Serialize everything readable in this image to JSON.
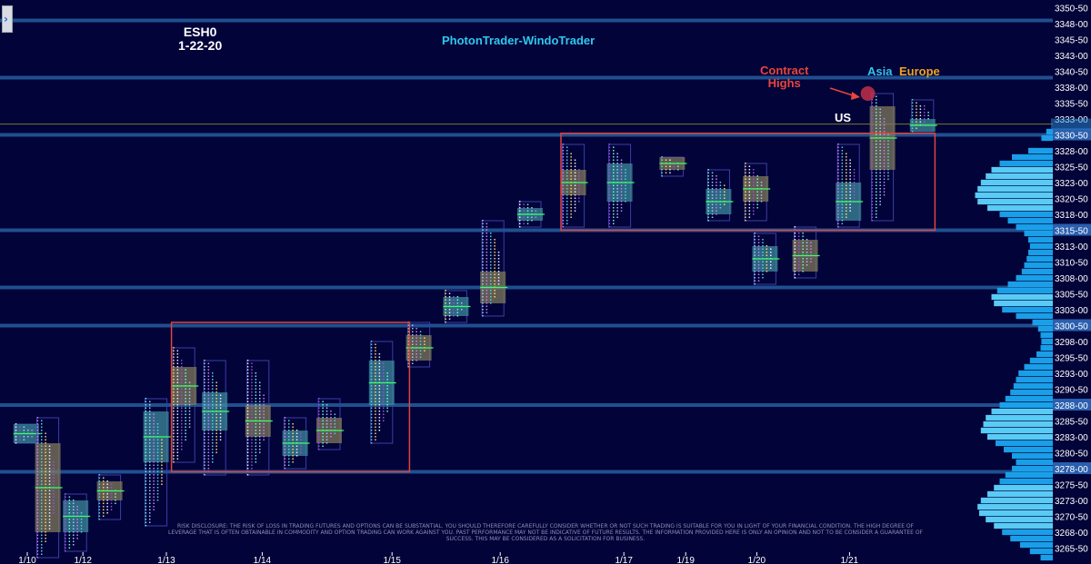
{
  "header": {
    "symbol": "ESH0",
    "date": "1-22-20",
    "title": "PhotonTrader-WindoTrader"
  },
  "annotations": {
    "contract_highs": "Contract\nHighs",
    "asia": "Asia",
    "europe": "Europe",
    "us": "US"
  },
  "disclaimer": "RISK DISCLOSURE: THE RISK OF LOSS IN TRADING FUTURES AND OPTIONS CAN BE SUBSTANTIAL. YOU SHOULD THEREFORE CAREFULLY CONSIDER WHETHER OR NOT SUCH TRADING IS SUITABLE FOR YOU IN LIGHT OF YOUR FINANCIAL CONDITION. THE HIGH DEGREE OF LEVERAGE THAT IS OFTEN OBTAINABLE IN COMMODITY AND OPTION TRADING CAN WORK AGAINST YOU. PAST PERFORMANCE MAY NOT BE INDICATIVE OF FUTURE RESULTS. THE INFORMATION PROVIDED HERE IS ONLY AN OPINION AND NOT TO BE CONSIDER A GUARANTEE OF SUCCESS. THIS MAY BE CONSIDERED AS A SOLICITATION FOR BUSINESS.",
  "colors": {
    "background": "#020338",
    "level_line": "#1f4f8f",
    "box": "#e0443f",
    "axis_text": "#ffffff",
    "axis_highlight": "#2a5fae",
    "profile": "#1aa7f0",
    "annotation_red": "#e8453c",
    "annotation_cyan": "#34c3ef",
    "annotation_orange": "#f0a321"
  },
  "chart_data": {
    "type": "market-profile",
    "title": "PhotonTrader-WindoTrader",
    "y_axis": {
      "min": 3263,
      "max": 3351,
      "position": "right",
      "ticks": [
        "3350-50",
        "3348-00",
        "3345-50",
        "3343-00",
        "3340-50",
        "3338-00",
        "3335-50",
        "3333-00",
        "3330-50",
        "3328-00",
        "3325-50",
        "3323-00",
        "3320-50",
        "3318-00",
        "3315-50",
        "3313-00",
        "3310-50",
        "3308-00",
        "3305-50",
        "3303-00",
        "3300-50",
        "3298-00",
        "3295-50",
        "3293-00",
        "3290-50",
        "3288-00",
        "3285-50",
        "3283-00",
        "3280-50",
        "3278-00",
        "3275-50",
        "3273-00",
        "3270-50",
        "3268-00",
        "3265-50"
      ],
      "highlighted_ticks": [
        "3330-50",
        "3315-50",
        "3300-50",
        "3288-00",
        "3278-00"
      ]
    },
    "x_axis": {
      "labels": [
        {
          "text": "1/10",
          "x": 0
        },
        {
          "text": "1/12",
          "x": 1.8
        },
        {
          "text": "1/13",
          "x": 4.5
        },
        {
          "text": "1/14",
          "x": 7.6
        },
        {
          "text": "1/15",
          "x": 11.8
        },
        {
          "text": "1/16",
          "x": 15.3
        },
        {
          "text": "1/17",
          "x": 19.3
        },
        {
          "text": "1/19",
          "x": 21.3
        },
        {
          "text": "1/20",
          "x": 23.6
        },
        {
          "text": "1/21",
          "x": 26.6
        }
      ]
    },
    "horizontal_levels": [
      3348.5,
      3339.5,
      3330.5,
      3315.5,
      3306.5,
      3300.5,
      3288,
      3277.5
    ],
    "boxes": [
      {
        "x0": 4.9,
        "x1": 12.6,
        "y_low": 3277.5,
        "y_high": 3301
      },
      {
        "x0": 17.5,
        "x1": 29.6,
        "y_low": 3315.5,
        "y_high": 3330.75
      }
    ],
    "profiles": [
      {
        "x": 0.2,
        "low": 3282,
        "high": 3285,
        "val": 3282,
        "vah": 3285
      },
      {
        "x": 0.9,
        "low": 3264,
        "high": 3286,
        "val": 3268,
        "vah": 3282
      },
      {
        "x": 1.8,
        "low": 3265,
        "high": 3274,
        "val": 3268,
        "vah": 3273
      },
      {
        "x": 2.9,
        "low": 3270,
        "high": 3277,
        "val": 3273,
        "vah": 3276
      },
      {
        "x": 4.4,
        "low": 3269,
        "high": 3289,
        "val": 3279,
        "vah": 3287
      },
      {
        "x": 5.3,
        "low": 3279,
        "high": 3297,
        "val": 3288,
        "vah": 3294
      },
      {
        "x": 6.3,
        "low": 3277,
        "high": 3295,
        "val": 3284,
        "vah": 3290
      },
      {
        "x": 7.7,
        "low": 3277,
        "high": 3295,
        "val": 3283,
        "vah": 3288
      },
      {
        "x": 8.9,
        "low": 3278,
        "high": 3286,
        "val": 3280,
        "vah": 3284
      },
      {
        "x": 10.0,
        "low": 3281,
        "high": 3289,
        "val": 3282,
        "vah": 3286
      },
      {
        "x": 11.7,
        "low": 3282,
        "high": 3298,
        "val": 3288,
        "vah": 3295
      },
      {
        "x": 12.9,
        "low": 3294,
        "high": 3301,
        "val": 3295,
        "vah": 3299
      },
      {
        "x": 14.1,
        "low": 3301,
        "high": 3306,
        "val": 3302,
        "vah": 3305
      },
      {
        "x": 15.3,
        "low": 3302,
        "high": 3317,
        "val": 3304,
        "vah": 3309
      },
      {
        "x": 16.5,
        "low": 3316,
        "high": 3320,
        "val": 3317,
        "vah": 3319
      },
      {
        "x": 17.9,
        "low": 3316,
        "high": 3329,
        "val": 3321,
        "vah": 3325
      },
      {
        "x": 19.4,
        "low": 3316,
        "high": 3329,
        "val": 3320,
        "vah": 3326
      },
      {
        "x": 21.1,
        "low": 3324,
        "high": 3327,
        "val": 3325,
        "vah": 3327
      },
      {
        "x": 22.6,
        "low": 3317,
        "high": 3325,
        "val": 3318,
        "vah": 3322
      },
      {
        "x": 23.8,
        "low": 3317,
        "high": 3326,
        "val": 3320,
        "vah": 3324
      },
      {
        "x": 24.1,
        "low": 3307,
        "high": 3315,
        "val": 3309,
        "vah": 3313
      },
      {
        "x": 25.4,
        "low": 3308,
        "high": 3316,
        "val": 3309,
        "vah": 3314
      },
      {
        "x": 26.8,
        "low": 3316,
        "high": 3329,
        "val": 3317,
        "vah": 3323
      },
      {
        "x": 27.9,
        "low": 3317,
        "high": 3337,
        "val": 3325,
        "vah": 3335
      },
      {
        "x": 29.2,
        "low": 3331,
        "high": 3336,
        "val": 3331,
        "vah": 3333
      }
    ],
    "volume_profile": [
      {
        "price": 3331,
        "w": 8
      },
      {
        "price": 3330,
        "w": 14
      },
      {
        "price": 3328,
        "w": 30
      },
      {
        "price": 3327,
        "w": 50
      },
      {
        "price": 3326,
        "w": 65
      },
      {
        "price": 3325,
        "w": 75
      },
      {
        "price": 3324,
        "w": 82
      },
      {
        "price": 3323,
        "w": 88
      },
      {
        "price": 3322,
        "w": 92
      },
      {
        "price": 3321,
        "w": 95
      },
      {
        "price": 3320,
        "w": 92
      },
      {
        "price": 3319,
        "w": 80
      },
      {
        "price": 3318,
        "w": 65
      },
      {
        "price": 3317,
        "w": 55
      },
      {
        "price": 3316,
        "w": 45
      },
      {
        "price": 3315,
        "w": 35
      },
      {
        "price": 3314,
        "w": 30
      },
      {
        "price": 3313,
        "w": 28
      },
      {
        "price": 3312,
        "w": 30
      },
      {
        "price": 3311,
        "w": 32
      },
      {
        "price": 3310,
        "w": 35
      },
      {
        "price": 3309,
        "w": 38
      },
      {
        "price": 3308,
        "w": 45
      },
      {
        "price": 3307,
        "w": 55
      },
      {
        "price": 3306,
        "w": 68
      },
      {
        "price": 3305,
        "w": 75
      },
      {
        "price": 3304,
        "w": 72
      },
      {
        "price": 3303,
        "w": 62
      },
      {
        "price": 3302,
        "w": 45
      },
      {
        "price": 3301,
        "w": 25
      },
      {
        "price": 3300,
        "w": 18
      },
      {
        "price": 3299,
        "w": 15
      },
      {
        "price": 3298,
        "w": 14
      },
      {
        "price": 3297,
        "w": 15
      },
      {
        "price": 3296,
        "w": 20
      },
      {
        "price": 3295,
        "w": 28
      },
      {
        "price": 3294,
        "w": 35
      },
      {
        "price": 3293,
        "w": 42
      },
      {
        "price": 3292,
        "w": 45
      },
      {
        "price": 3291,
        "w": 48
      },
      {
        "price": 3290,
        "w": 52
      },
      {
        "price": 3289,
        "w": 58
      },
      {
        "price": 3288,
        "w": 65
      },
      {
        "price": 3287,
        "w": 75
      },
      {
        "price": 3286,
        "w": 82
      },
      {
        "price": 3285,
        "w": 85
      },
      {
        "price": 3284,
        "w": 88
      },
      {
        "price": 3283,
        "w": 80
      },
      {
        "price": 3282,
        "w": 70
      },
      {
        "price": 3281,
        "w": 60
      },
      {
        "price": 3280,
        "w": 50
      },
      {
        "price": 3279,
        "w": 45
      },
      {
        "price": 3278,
        "w": 50
      },
      {
        "price": 3277,
        "w": 58
      },
      {
        "price": 3276,
        "w": 65
      },
      {
        "price": 3275,
        "w": 72
      },
      {
        "price": 3274,
        "w": 80
      },
      {
        "price": 3273,
        "w": 88
      },
      {
        "price": 3272,
        "w": 92
      },
      {
        "price": 3271,
        "w": 90
      },
      {
        "price": 3270,
        "w": 82
      },
      {
        "price": 3269,
        "w": 72
      },
      {
        "price": 3268,
        "w": 62
      },
      {
        "price": 3267,
        "w": 52
      },
      {
        "price": 3266,
        "w": 40
      },
      {
        "price": 3265,
        "w": 28
      },
      {
        "price": 3264,
        "w": 15
      }
    ],
    "contract_high": {
      "x": 27.9,
      "price": 3337
    }
  }
}
